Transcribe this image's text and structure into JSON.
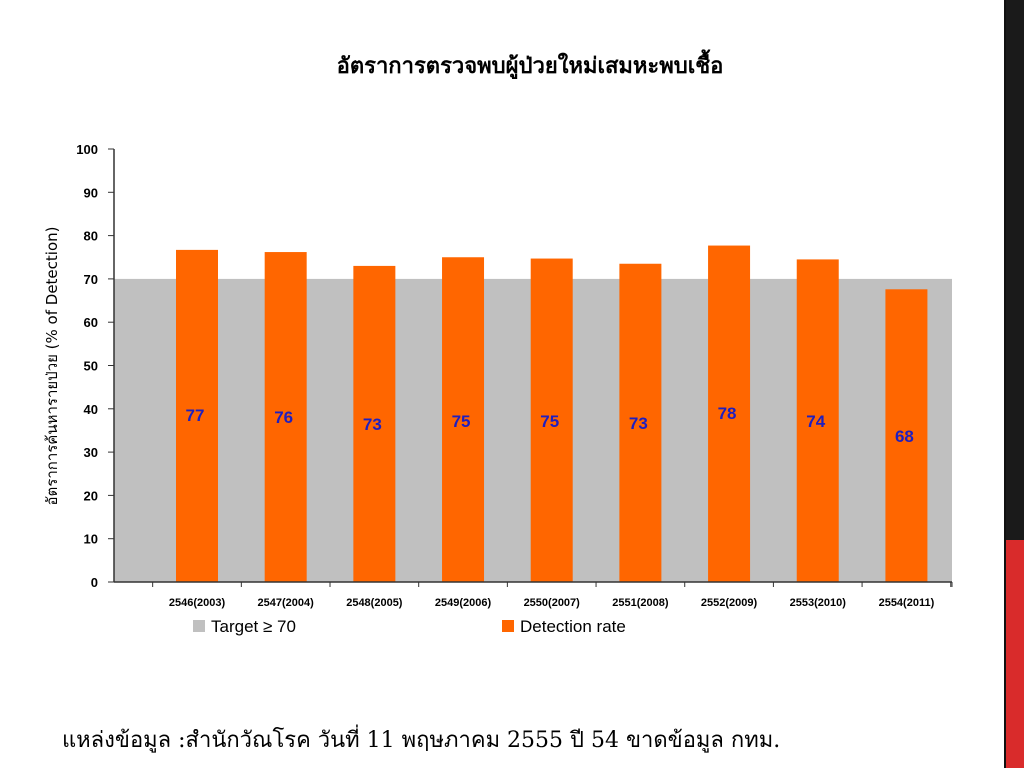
{
  "chart_data": {
    "type": "bar",
    "title": "อัตราการตรวจพบผู้ป่วยใหม่เสมหะพบเชื้อ",
    "ylabel": "อัตราการค้นหารายป่วย (% of Detection)",
    "xlabel": "",
    "ylim": [
      0,
      100
    ],
    "yticks": [
      0,
      10,
      20,
      30,
      40,
      50,
      60,
      70,
      80,
      90,
      100
    ],
    "categories": [
      "2546(2003)",
      "2547(2004)",
      "2548(2005)",
      "2549(2006)",
      "2550(2007)",
      "2551(2008)",
      "2552(2009)",
      "2553(2010)",
      "2554(2011)"
    ],
    "series": [
      {
        "name": "Target ≥ 70",
        "type": "area",
        "value": 70,
        "color": "#c0c0c0"
      },
      {
        "name": "Detection rate",
        "type": "bar",
        "values": [
          76.7,
          76.2,
          73.0,
          75.0,
          74.7,
          73.5,
          77.7,
          74.5,
          67.6
        ],
        "color": "#ff6600"
      }
    ],
    "data_labels": [
      "77",
      "76",
      "73",
      "75",
      "75",
      "73",
      "78",
      "74",
      "68"
    ],
    "data_label_color": "#1f1fbf",
    "legend": "bottom",
    "grid": false
  },
  "source_note": "แหล่งข้อมูล :สำนักวัณโรค วันที่ 11 พฤษภาคม 2555 ปี 54 ขาดข้อมูล กทม."
}
